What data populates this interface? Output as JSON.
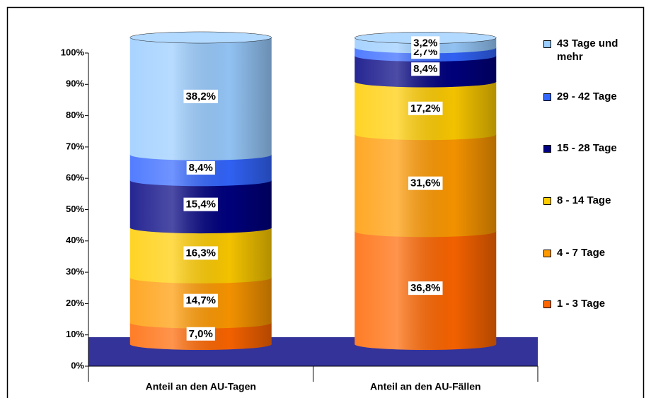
{
  "chart_data": {
    "type": "stacked-cylinder",
    "categories": [
      "Anteil an den AU-Tagen",
      "Anteil an den AU-Fällen"
    ],
    "series": [
      {
        "name": "1 - 3 Tage",
        "color": "#ff6600",
        "values": [
          7.0,
          36.8
        ],
        "value_labels": [
          "7,0%",
          "36,8%"
        ]
      },
      {
        "name": "4 - 7 Tage",
        "color": "#ff9900",
        "values": [
          14.7,
          31.6
        ],
        "value_labels": [
          "14,7%",
          "31,6%"
        ]
      },
      {
        "name": "8 - 14 Tage",
        "color": "#ffcc00",
        "values": [
          16.3,
          17.2
        ],
        "value_labels": [
          "16,3%",
          "17,2%"
        ]
      },
      {
        "name": "15 - 28 Tage",
        "color": "#000080",
        "values": [
          15.4,
          8.4
        ],
        "value_labels": [
          "15,4%",
          "8,4%"
        ]
      },
      {
        "name": "29 - 42 Tage",
        "color": "#3366ff",
        "values": [
          8.4,
          2.7
        ],
        "value_labels": [
          "8,4%",
          "2,7%"
        ]
      },
      {
        "name": "43 Tage und mehr",
        "color": "#99ccff",
        "values": [
          38.2,
          3.2
        ],
        "value_labels": [
          "38,2%",
          "3,2%"
        ]
      }
    ],
    "ylim": [
      0,
      100
    ],
    "yticks": [
      {
        "value": 0,
        "label": "0%"
      },
      {
        "value": 10,
        "label": "10%"
      },
      {
        "value": 20,
        "label": "20%"
      },
      {
        "value": 30,
        "label": "30%"
      },
      {
        "value": 40,
        "label": "40%"
      },
      {
        "value": 50,
        "label": "50%"
      },
      {
        "value": 60,
        "label": "60%"
      },
      {
        "value": 70,
        "label": "70%"
      },
      {
        "value": 80,
        "label": "80%"
      },
      {
        "value": 90,
        "label": "90%"
      },
      {
        "value": 100,
        "label": "100%"
      }
    ],
    "floor_color": "#333399",
    "legend": "right"
  }
}
